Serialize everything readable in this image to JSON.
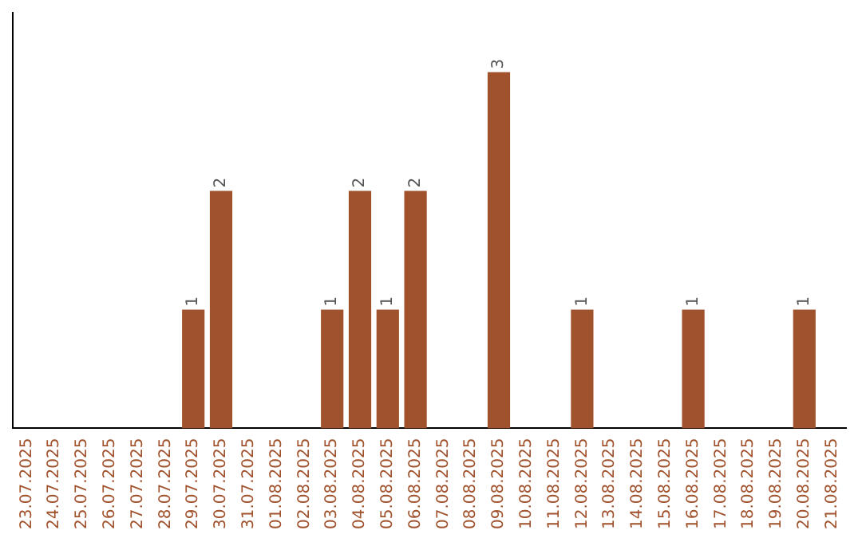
{
  "chart_data": {
    "type": "bar",
    "categories": [
      "23.07.2025",
      "24.07.2025",
      "25.07.2025",
      "26.07.2025",
      "27.07.2025",
      "28.07.2025",
      "29.07.2025",
      "30.07.2025",
      "31.07.2025",
      "01.08.2025",
      "02.08.2025",
      "03.08.2025",
      "04.08.2025",
      "05.08.2025",
      "06.08.2025",
      "07.08.2025",
      "08.08.2025",
      "09.08.2025",
      "10.08.2025",
      "11.08.2025",
      "12.08.2025",
      "13.08.2025",
      "14.08.2025",
      "15.08.2025",
      "16.08.2025",
      "17.08.2025",
      "18.08.2025",
      "19.08.2025",
      "20.08.2025",
      "21.08.2025"
    ],
    "values": [
      0,
      0,
      0,
      0,
      0,
      0,
      1,
      2,
      0,
      0,
      0,
      1,
      2,
      1,
      2,
      0,
      0,
      3,
      0,
      0,
      1,
      0,
      0,
      0,
      1,
      0,
      0,
      0,
      1,
      0
    ],
    "value_labels": [
      null,
      null,
      null,
      null,
      null,
      null,
      "1",
      "2",
      null,
      null,
      null,
      "1",
      "2",
      "1",
      "2",
      null,
      null,
      "3",
      null,
      null,
      "1",
      null,
      null,
      null,
      "1",
      null,
      null,
      null,
      "1",
      null
    ],
    "color": "#a0522d",
    "tick_labels": "x",
    "grid": false,
    "legend": false
  }
}
